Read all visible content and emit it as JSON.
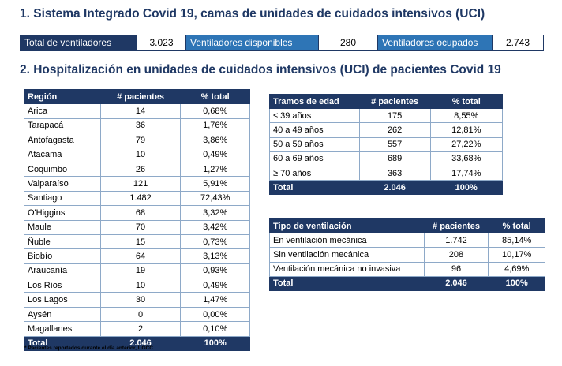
{
  "section1": {
    "title": "1. Sistema Integrado Covid 19, camas de unidades de cuidados intensivos (UCI)",
    "total_label": "Total de ventiladores",
    "total_value": "3.023",
    "disponibles_label": "Ventiladores disponibles",
    "disponibles_value": "280",
    "ocupados_label": "Ventiladores ocupados",
    "ocupados_value": "2.743"
  },
  "section2": {
    "title": "2. Hospitalización en unidades de cuidados intensivos (UCI) de pacientes Covid 19"
  },
  "region_table": {
    "headers": [
      "Región",
      "# pacientes",
      "% total"
    ],
    "rows": [
      [
        "Arica",
        "14",
        "0,68%"
      ],
      [
        "Tarapacá",
        "36",
        "1,76%"
      ],
      [
        "Antofagasta",
        "79",
        "3,86%"
      ],
      [
        "Atacama",
        "10",
        "0,49%"
      ],
      [
        "Coquimbo",
        "26",
        "1,27%"
      ],
      [
        "Valparaíso",
        "121",
        "5,91%"
      ],
      [
        "Santiago",
        "1.482",
        "72,43%"
      ],
      [
        "O'Higgins",
        "68",
        "3,32%"
      ],
      [
        "Maule",
        "70",
        "3,42%"
      ],
      [
        "Ñuble",
        "15",
        "0,73%"
      ],
      [
        "Biobío",
        "64",
        "3,13%"
      ],
      [
        "Araucanía",
        "19",
        "0,93%"
      ],
      [
        "Los Ríos",
        "10",
        "0,49%"
      ],
      [
        "Los Lagos",
        "30",
        "1,47%"
      ],
      [
        "Aysén",
        "0",
        "0,00%"
      ],
      [
        "Magallanes",
        "2",
        "0,10%"
      ]
    ],
    "total": [
      "Total",
      "2.046",
      "100%"
    ]
  },
  "age_table": {
    "headers": [
      "Tramos de edad",
      "# pacientes",
      "% total"
    ],
    "rows": [
      [
        "≤ 39 años",
        "175",
        "8,55%"
      ],
      [
        "40 a 49 años",
        "262",
        "12,81%"
      ],
      [
        "50 a 59 años",
        "557",
        "27,22%"
      ],
      [
        "60 a 69 años",
        "689",
        "33,68%"
      ],
      [
        "≥ 70 años",
        "363",
        "17,74%"
      ]
    ],
    "total": [
      "Total",
      "2.046",
      "100%"
    ]
  },
  "vent_table": {
    "headers": [
      "Tipo de ventilación",
      "# pacientes",
      "% total"
    ],
    "rows": [
      [
        "En ventilación mecánica",
        "1.742",
        "85,14%"
      ],
      [
        "Sin ventilación mecánica",
        "208",
        "10,17%"
      ],
      [
        "Ventilación mecánica no invasiva",
        "96",
        "4,69%"
      ]
    ],
    "total": [
      "Total",
      "2.046",
      "100%"
    ]
  },
  "footnote": "* Pacientes reportados durante el día anterior, UGCC",
  "colors": {
    "navy": "#1f3864",
    "blue": "#2e75b6",
    "border": "#8ea9c8"
  }
}
